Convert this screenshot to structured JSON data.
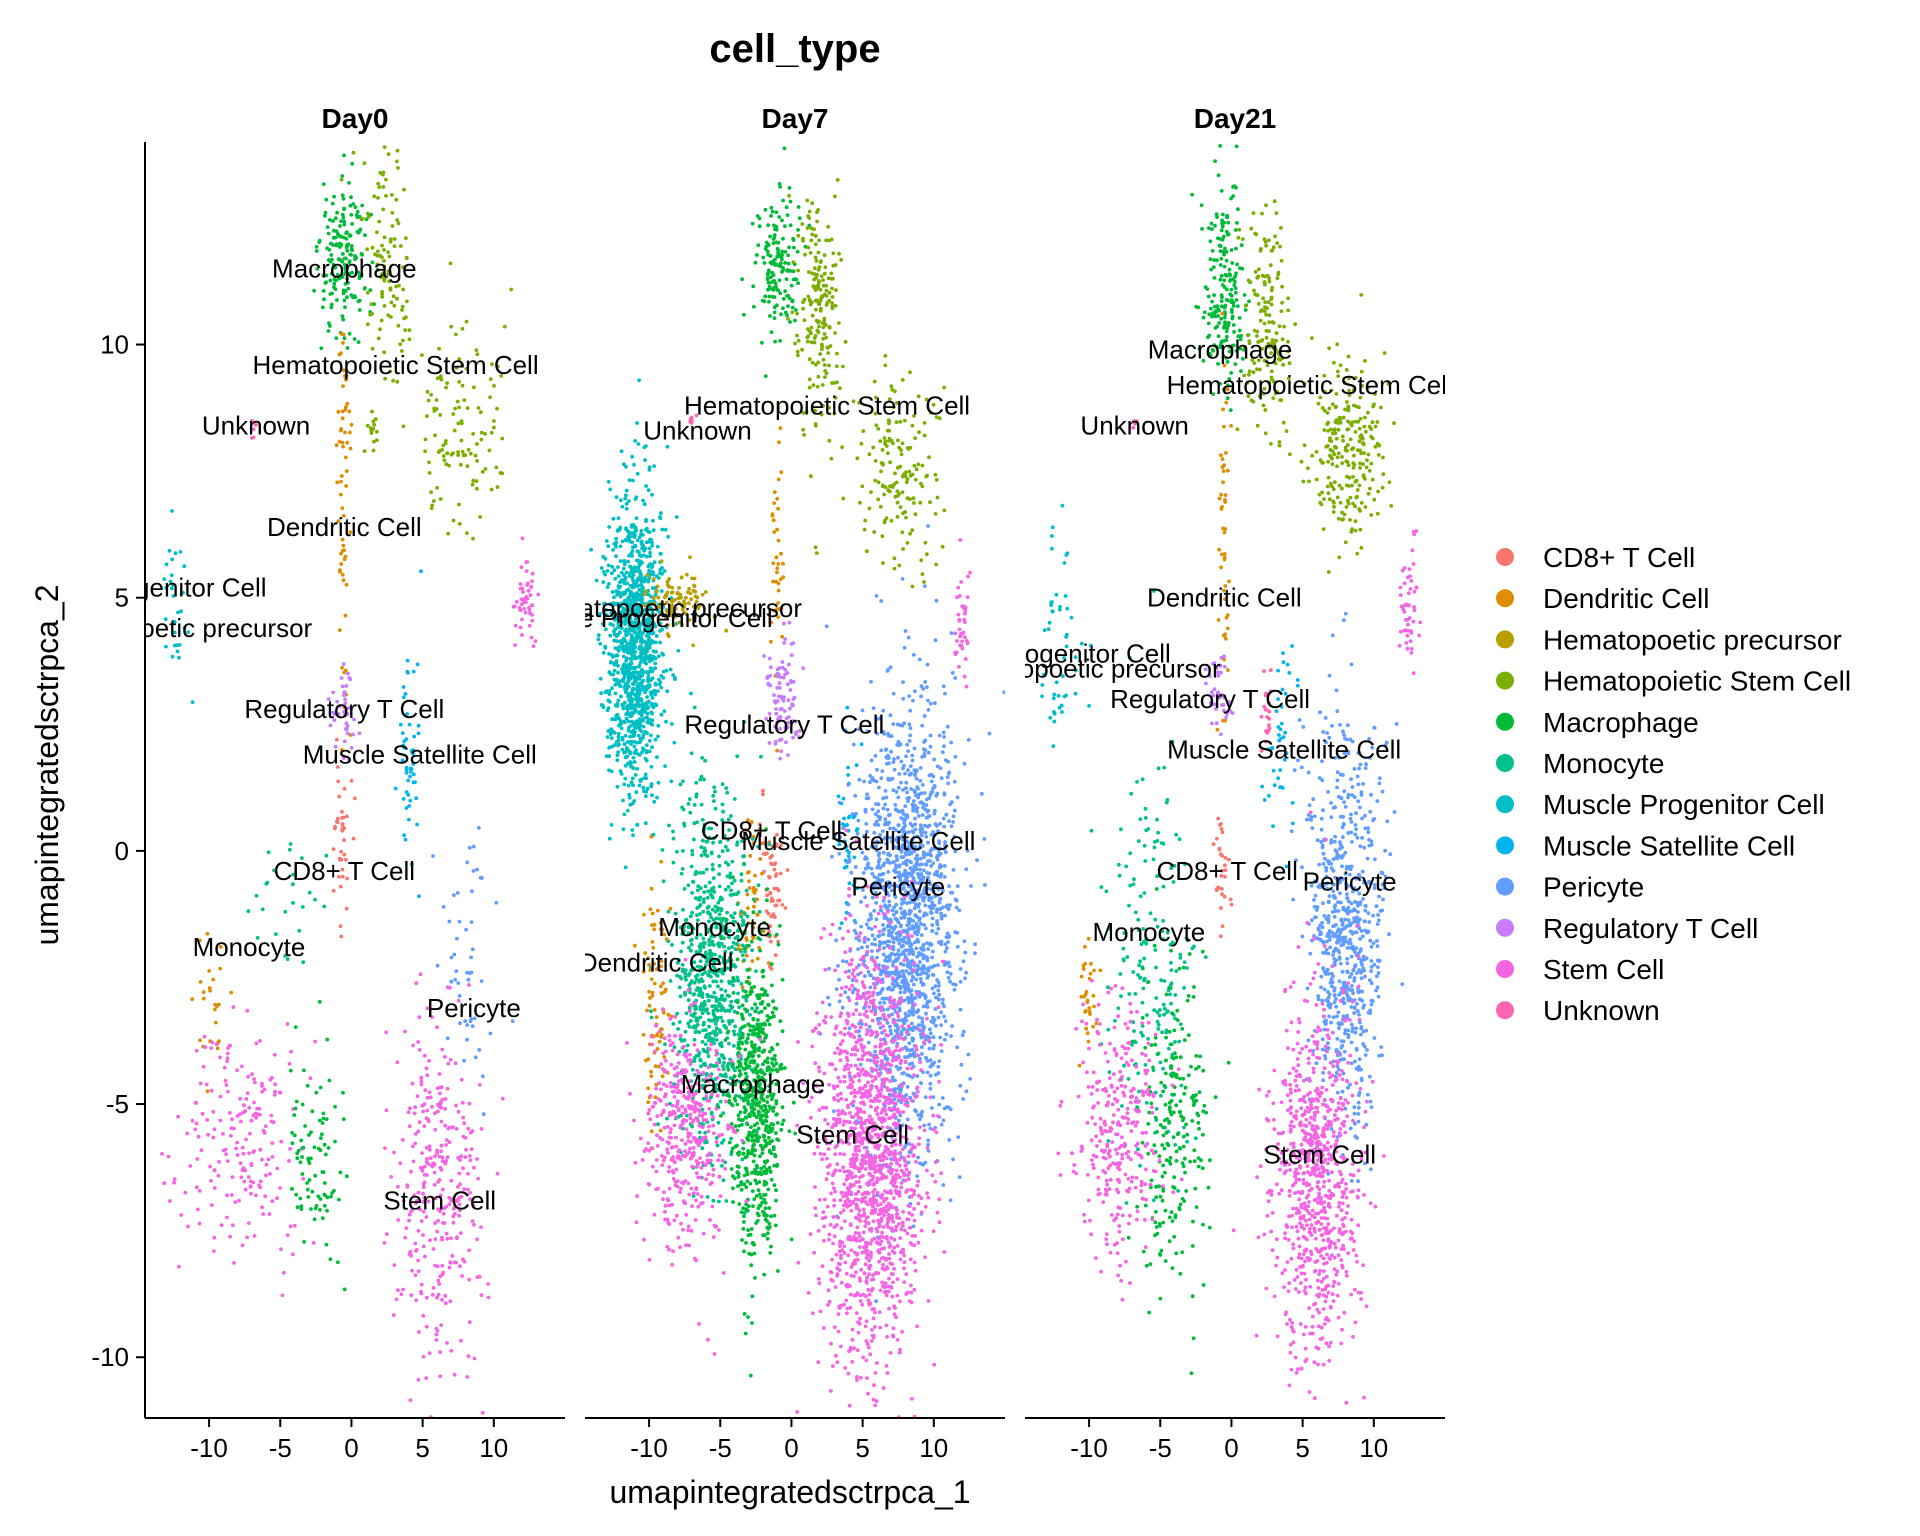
{
  "chart_data": {
    "type": "scatter",
    "title": "cell_type",
    "xlabel": "umapintegratedsctrpca_1",
    "ylabel": "umapintegratedsctrpca_2",
    "panels": [
      "Day0",
      "Day7",
      "Day21"
    ],
    "xlim": [
      -14.5,
      15
    ],
    "ylim": [
      -11.2,
      14
    ],
    "xticks": [
      -10,
      -5,
      0,
      5,
      10
    ],
    "yticks": [
      -10,
      -5,
      0,
      5,
      10
    ],
    "grid": false,
    "legend_position": "right",
    "series": [
      {
        "name": "CD8+ T Cell",
        "color": "#F8766D"
      },
      {
        "name": "Dendritic Cell",
        "color": "#DE8C00"
      },
      {
        "name": "Hematopoetic precursor",
        "color": "#B79F00"
      },
      {
        "name": "Hematopoietic Stem Cell",
        "color": "#7CAE00"
      },
      {
        "name": "Macrophage",
        "color": "#00BA38"
      },
      {
        "name": "Monocyte",
        "color": "#00C08B"
      },
      {
        "name": "Muscle Progenitor Cell",
        "color": "#00BFC4"
      },
      {
        "name": "Muscle Satellite Cell",
        "color": "#00B4F0"
      },
      {
        "name": "Pericyte",
        "color": "#619CFF"
      },
      {
        "name": "Regulatory T Cell",
        "color": "#C77CFF"
      },
      {
        "name": "Stem Cell",
        "color": "#F564E3"
      },
      {
        "name": "Unknown",
        "color": "#FF64B0"
      }
    ],
    "clusters": [
      {
        "panel": "Day0",
        "series": 4,
        "cx": -0.5,
        "cy": 11.6,
        "sx": 0.9,
        "sy": 0.8,
        "n": 180
      },
      {
        "panel": "Day0",
        "series": 3,
        "cx": 2.5,
        "cy": 11.5,
        "sx": 0.8,
        "sy": 1.2,
        "n": 110
      },
      {
        "panel": "Day0",
        "series": 3,
        "cx": 7.5,
        "cy": 8.3,
        "sx": 1.5,
        "sy": 1.0,
        "n": 120
      },
      {
        "panel": "Day0",
        "series": 3,
        "cx": 1.5,
        "cy": 8.3,
        "sx": 0.2,
        "sy": 0.2,
        "n": 15
      },
      {
        "panel": "Day0",
        "series": 1,
        "cx": -0.5,
        "cy": 7.0,
        "sx": 0.25,
        "sy": 2.0,
        "n": 60
      },
      {
        "panel": "Day0",
        "series": 11,
        "cx": -6.9,
        "cy": 8.4,
        "sx": 0.1,
        "sy": 0.15,
        "n": 6
      },
      {
        "panel": "Day0",
        "series": 6,
        "cx": -12.5,
        "cy": 4.8,
        "sx": 0.5,
        "sy": 1.0,
        "n": 30
      },
      {
        "panel": "Day0",
        "series": 9,
        "cx": -0.5,
        "cy": 2.8,
        "sx": 0.5,
        "sy": 0.5,
        "n": 40
      },
      {
        "panel": "Day0",
        "series": 7,
        "cx": 4.0,
        "cy": 2.0,
        "sx": 0.4,
        "sy": 1.2,
        "n": 50
      },
      {
        "panel": "Day0",
        "series": 0,
        "cx": -0.7,
        "cy": 0.3,
        "sx": 0.3,
        "sy": 0.8,
        "n": 40
      },
      {
        "panel": "Day0",
        "series": 5,
        "cx": -5.0,
        "cy": -1.0,
        "sx": 1.5,
        "sy": 0.6,
        "n": 25
      },
      {
        "panel": "Day0",
        "series": 1,
        "cx": -10.0,
        "cy": -3.0,
        "sx": 0.5,
        "sy": 0.6,
        "n": 25
      },
      {
        "panel": "Day0",
        "series": 10,
        "cx": -7.5,
        "cy": -5.8,
        "sx": 2.0,
        "sy": 1.2,
        "n": 200
      },
      {
        "panel": "Day0",
        "series": 4,
        "cx": -2.5,
        "cy": -5.8,
        "sx": 1.0,
        "sy": 1.0,
        "n": 90
      },
      {
        "panel": "Day0",
        "series": 10,
        "cx": 6.0,
        "cy": -6.5,
        "sx": 1.5,
        "sy": 1.8,
        "n": 320
      },
      {
        "panel": "Day0",
        "series": 8,
        "cx": 8.0,
        "cy": -2.0,
        "sx": 1.0,
        "sy": 1.5,
        "n": 50
      },
      {
        "panel": "Day0",
        "series": 10,
        "cx": 12.3,
        "cy": 5.0,
        "sx": 0.4,
        "sy": 0.5,
        "n": 50
      },
      {
        "panel": "Day7",
        "series": 4,
        "cx": -1.0,
        "cy": 11.5,
        "sx": 0.8,
        "sy": 0.8,
        "n": 160
      },
      {
        "panel": "Day7",
        "series": 3,
        "cx": 2.0,
        "cy": 10.8,
        "sx": 0.8,
        "sy": 1.2,
        "n": 200
      },
      {
        "panel": "Day7",
        "series": 3,
        "cx": 7.5,
        "cy": 7.5,
        "sx": 1.3,
        "sy": 0.9,
        "n": 160
      },
      {
        "panel": "Day7",
        "series": 1,
        "cx": -1.0,
        "cy": 6.0,
        "sx": 0.2,
        "sy": 1.5,
        "n": 40
      },
      {
        "panel": "Day7",
        "series": 11,
        "cx": -7.0,
        "cy": 8.5,
        "sx": 0.1,
        "sy": 0.1,
        "n": 6
      },
      {
        "panel": "Day7",
        "series": 6,
        "cx": -11.0,
        "cy": 4.0,
        "sx": 1.0,
        "sy": 1.4,
        "n": 1200
      },
      {
        "panel": "Day7",
        "series": 2,
        "cx": -8.0,
        "cy": 4.9,
        "sx": 1.0,
        "sy": 0.3,
        "n": 100
      },
      {
        "panel": "Day7",
        "series": 9,
        "cx": -0.5,
        "cy": 3.0,
        "sx": 0.6,
        "sy": 0.6,
        "n": 90
      },
      {
        "panel": "Day7",
        "series": 7,
        "cx": 4.0,
        "cy": 0.5,
        "sx": 0.4,
        "sy": 1.0,
        "n": 40
      },
      {
        "panel": "Day7",
        "series": 0,
        "cx": -1.3,
        "cy": -0.5,
        "sx": 0.4,
        "sy": 0.8,
        "n": 60
      },
      {
        "panel": "Day7",
        "series": 1,
        "cx": -3.0,
        "cy": -1.0,
        "sx": 0.5,
        "sy": 1.0,
        "n": 60
      },
      {
        "panel": "Day7",
        "series": 5,
        "cx": -5.5,
        "cy": -2.5,
        "sx": 1.4,
        "sy": 1.8,
        "n": 800
      },
      {
        "panel": "Day7",
        "series": 4,
        "cx": -2.5,
        "cy": -5.0,
        "sx": 0.9,
        "sy": 1.5,
        "n": 600
      },
      {
        "panel": "Day7",
        "series": 1,
        "cx": -9.5,
        "cy": -3.0,
        "sx": 0.5,
        "sy": 1.2,
        "n": 80
      },
      {
        "panel": "Day7",
        "series": 10,
        "cx": -7.5,
        "cy": -5.5,
        "sx": 1.5,
        "sy": 1.2,
        "n": 400
      },
      {
        "panel": "Day7",
        "series": 8,
        "cx": 8.0,
        "cy": -1.5,
        "sx": 1.8,
        "sy": 2.2,
        "n": 1600
      },
      {
        "panel": "Day7",
        "series": 10,
        "cx": 5.5,
        "cy": -6.0,
        "sx": 1.8,
        "sy": 2.0,
        "n": 1400
      },
      {
        "panel": "Day7",
        "series": 10,
        "cx": 12.0,
        "cy": 4.5,
        "sx": 0.3,
        "sy": 0.6,
        "n": 40
      },
      {
        "panel": "Day21",
        "series": 4,
        "cx": -0.5,
        "cy": 11.0,
        "sx": 0.8,
        "sy": 1.0,
        "n": 200
      },
      {
        "panel": "Day21",
        "series": 3,
        "cx": 2.5,
        "cy": 10.5,
        "sx": 0.8,
        "sy": 1.2,
        "n": 160
      },
      {
        "panel": "Day21",
        "series": 3,
        "cx": 8.0,
        "cy": 8.0,
        "sx": 1.3,
        "sy": 0.9,
        "n": 240
      },
      {
        "panel": "Day21",
        "series": 1,
        "cx": -0.5,
        "cy": 6.5,
        "sx": 0.2,
        "sy": 1.8,
        "n": 50
      },
      {
        "panel": "Day21",
        "series": 11,
        "cx": -6.8,
        "cy": 8.5,
        "sx": 0.1,
        "sy": 0.1,
        "n": 5
      },
      {
        "panel": "Day21",
        "series": 6,
        "cx": -12.0,
        "cy": 4.0,
        "sx": 0.8,
        "sy": 1.2,
        "n": 50
      },
      {
        "panel": "Day21",
        "series": 9,
        "cx": -1.0,
        "cy": 3.0,
        "sx": 0.5,
        "sy": 0.4,
        "n": 40
      },
      {
        "panel": "Day21",
        "series": 7,
        "cx": 3.5,
        "cy": 2.0,
        "sx": 0.6,
        "sy": 1.0,
        "n": 40
      },
      {
        "panel": "Day21",
        "series": 0,
        "cx": -0.8,
        "cy": -0.3,
        "sx": 0.3,
        "sy": 0.6,
        "n": 30
      },
      {
        "panel": "Day21",
        "series": 5,
        "cx": -5.5,
        "cy": -2.5,
        "sx": 1.5,
        "sy": 2.0,
        "n": 200
      },
      {
        "panel": "Day21",
        "series": 4,
        "cx": -4.0,
        "cy": -5.5,
        "sx": 1.2,
        "sy": 1.5,
        "n": 220
      },
      {
        "panel": "Day21",
        "series": 1,
        "cx": -10.0,
        "cy": -2.8,
        "sx": 0.3,
        "sy": 0.6,
        "n": 30
      },
      {
        "panel": "Day21",
        "series": 10,
        "cx": -8.0,
        "cy": -5.5,
        "sx": 1.5,
        "sy": 1.3,
        "n": 300
      },
      {
        "panel": "Day21",
        "series": 8,
        "cx": 8.0,
        "cy": -1.5,
        "sx": 1.3,
        "sy": 2.0,
        "n": 700
      },
      {
        "panel": "Day21",
        "series": 10,
        "cx": 6.0,
        "cy": -6.5,
        "sx": 1.5,
        "sy": 1.8,
        "n": 800
      },
      {
        "panel": "Day21",
        "series": 10,
        "cx": 12.5,
        "cy": 5.0,
        "sx": 0.4,
        "sy": 0.6,
        "n": 50
      },
      {
        "panel": "Day21",
        "series": 11,
        "cx": 2.5,
        "cy": 2.5,
        "sx": 0.2,
        "sy": 0.5,
        "n": 20
      }
    ],
    "annotations": [
      {
        "panel": "Day0",
        "text": "Macrophage",
        "x": -0.5,
        "y": 11.5
      },
      {
        "panel": "Day0",
        "text": "Hematopoietic Stem Cell",
        "x": 3.1,
        "y": 9.6
      },
      {
        "panel": "Day0",
        "text": "Unknown",
        "x": -6.7,
        "y": 8.4
      },
      {
        "panel": "Day0",
        "text": "Dendritic Cell",
        "x": -0.5,
        "y": 6.4
      },
      {
        "panel": "Day0",
        "text": "Progenitor Cell",
        "x": -12.0,
        "y": 5.2
      },
      {
        "panel": "Day0",
        "text": "Hematopoetic precursor",
        "x": -12.5,
        "y": 4.4
      },
      {
        "panel": "Day0",
        "text": "Regulatory T Cell",
        "x": -0.5,
        "y": 2.8
      },
      {
        "panel": "Day0",
        "text": "Muscle Satellite Cell",
        "x": 4.8,
        "y": 1.9
      },
      {
        "panel": "Day0",
        "text": "CD8+ T Cell",
        "x": -0.5,
        "y": -0.4
      },
      {
        "panel": "Day0",
        "text": "Monocyte",
        "x": -7.2,
        "y": -1.9
      },
      {
        "panel": "Day0",
        "text": "Pericyte",
        "x": 8.6,
        "y": -3.1
      },
      {
        "panel": "Day0",
        "text": "Stem Cell",
        "x": 6.2,
        "y": -6.9
      },
      {
        "panel": "Day7",
        "text": "Hematopoietic Stem Cell",
        "x": 2.5,
        "y": 8.8
      },
      {
        "panel": "Day7",
        "text": "Unknown",
        "x": -6.6,
        "y": 8.3
      },
      {
        "panel": "Day7",
        "text": "Hematopoetic precursor",
        "x": -9.0,
        "y": 4.8
      },
      {
        "panel": "Day7",
        "text": "Muscle Progenitor Cell",
        "x": -10.5,
        "y": 4.6
      },
      {
        "panel": "Day7",
        "text": "Regulatory T Cell",
        "x": -0.5,
        "y": 2.5
      },
      {
        "panel": "Day7",
        "text": "CD8+ T Cell",
        "x": -1.4,
        "y": 0.4
      },
      {
        "panel": "Day7",
        "text": "Muscle Satellite Cell",
        "x": 4.7,
        "y": 0.2
      },
      {
        "panel": "Day7",
        "text": "Pericyte",
        "x": 7.5,
        "y": -0.7
      },
      {
        "panel": "Day7",
        "text": "Monocyte",
        "x": -5.4,
        "y": -1.5
      },
      {
        "panel": "Day7",
        "text": "Dendritic Cell",
        "x": -9.5,
        "y": -2.2
      },
      {
        "panel": "Day7",
        "text": "Macrophage",
        "x": -2.7,
        "y": -4.6
      },
      {
        "panel": "Day7",
        "text": "Stem Cell",
        "x": 4.3,
        "y": -5.6
      },
      {
        "panel": "Day21",
        "text": "Macrophage",
        "x": -0.8,
        "y": 9.9
      },
      {
        "panel": "Day21",
        "text": "Hematopoietic Stem Cell",
        "x": 5.5,
        "y": 9.2
      },
      {
        "panel": "Day21",
        "text": "Unknown",
        "x": -6.8,
        "y": 8.4
      },
      {
        "panel": "Day21",
        "text": "Dendritic Cell",
        "x": -0.5,
        "y": 5.0
      },
      {
        "panel": "Day21",
        "text": "Progenitor Cell",
        "x": -10.3,
        "y": 3.9
      },
      {
        "panel": "Day21",
        "text": "Hematopoetic precursor",
        "x": -10.5,
        "y": 3.6
      },
      {
        "panel": "Day21",
        "text": "Regulatory T Cell",
        "x": -1.5,
        "y": 3.0
      },
      {
        "panel": "Day21",
        "text": "Muscle Satellite Cell",
        "x": 3.7,
        "y": 2.0
      },
      {
        "panel": "Day21",
        "text": "CD8+ T Cell",
        "x": -0.3,
        "y": -0.4
      },
      {
        "panel": "Day21",
        "text": "Pericyte",
        "x": 8.3,
        "y": -0.6
      },
      {
        "panel": "Day21",
        "text": "Monocyte",
        "x": -5.8,
        "y": -1.6
      },
      {
        "panel": "Day21",
        "text": "Stem Cell",
        "x": 6.2,
        "y": -6.0
      }
    ]
  }
}
